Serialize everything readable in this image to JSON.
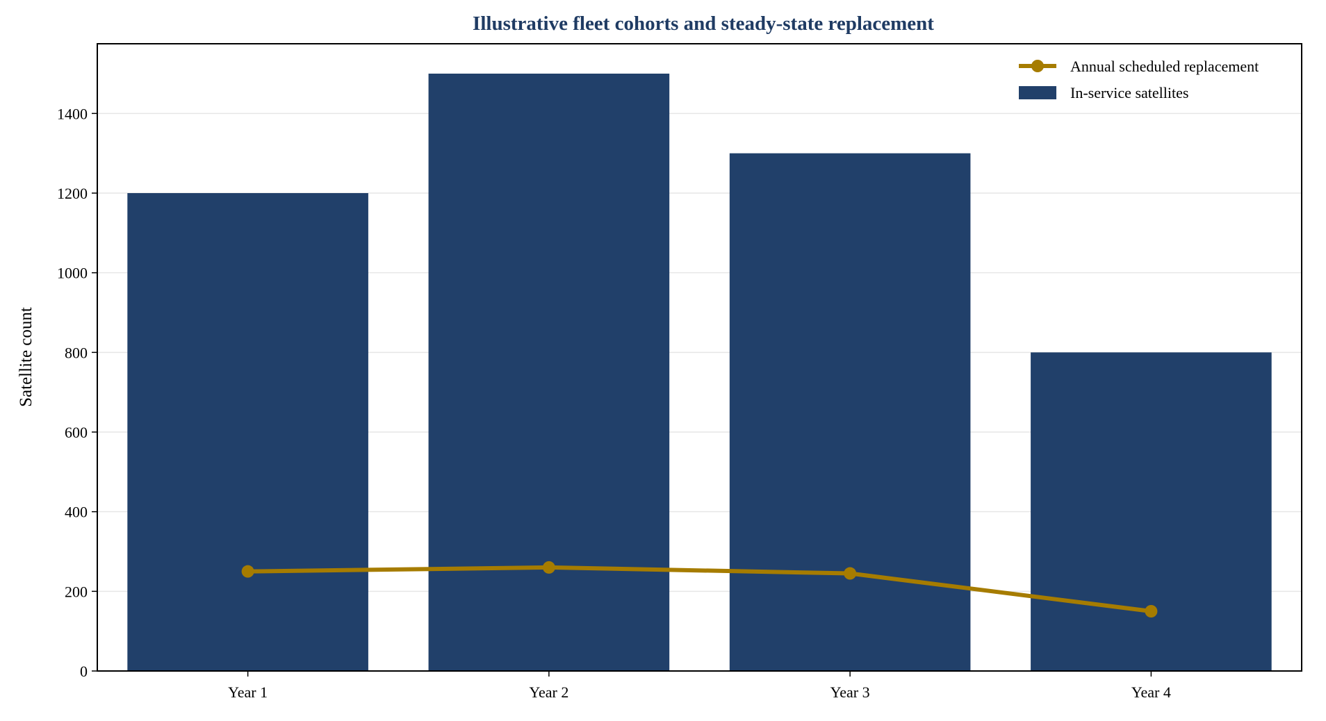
{
  "chart_data": {
    "type": "bar",
    "title": "Illustrative fleet cohorts and steady-state replacement",
    "xlabel": "",
    "ylabel": "Satellite count",
    "categories": [
      "Year 1",
      "Year 2",
      "Year 3",
      "Year 4"
    ],
    "series": [
      {
        "name": "In-service satellites",
        "kind": "bar",
        "color": "#21406a",
        "values": [
          1200,
          1500,
          1300,
          800
        ]
      },
      {
        "name": "Annual scheduled replacement",
        "kind": "line",
        "color": "#a67c00",
        "values": [
          250,
          260,
          245,
          150
        ]
      }
    ],
    "ylim": [
      0,
      1575
    ],
    "yticks": [
      0,
      200,
      400,
      600,
      800,
      1000,
      1200,
      1400
    ],
    "grid": true,
    "legend_position": "top-right",
    "colors": {
      "title": "#1f3b63",
      "grid": "#e6e6e6"
    }
  }
}
